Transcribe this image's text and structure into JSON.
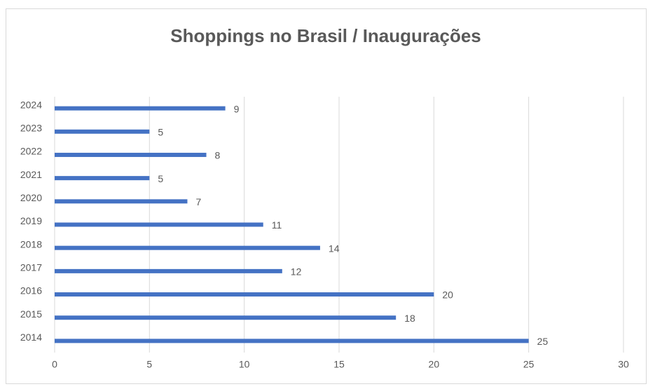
{
  "chart_data": {
    "type": "bar",
    "orientation": "horizontal",
    "title": "Shoppings no Brasil / Inaugurações",
    "categories": [
      "2014",
      "2015",
      "2016",
      "2017",
      "2018",
      "2019",
      "2020",
      "2021",
      "2022",
      "2023",
      "2024"
    ],
    "values": [
      25,
      18,
      20,
      12,
      14,
      11,
      7,
      5,
      8,
      5,
      9
    ],
    "color": "#4472c4",
    "xlim": [
      0,
      30
    ],
    "xticks": [
      0,
      5,
      10,
      15,
      20,
      25,
      30
    ],
    "grid": true,
    "data_labels": true
  }
}
